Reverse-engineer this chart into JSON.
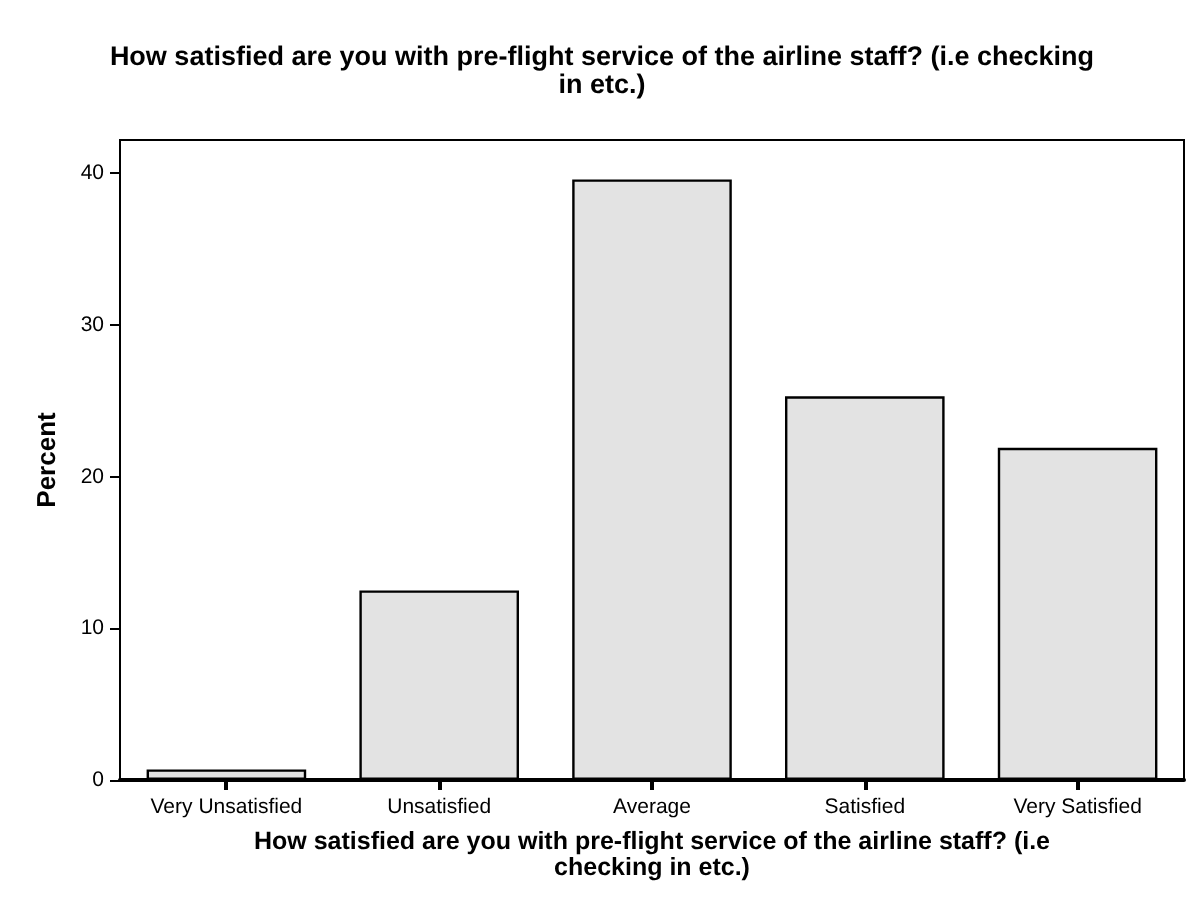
{
  "chart_data": {
    "type": "bar",
    "title": "How satisfied are you with pre-flight service of the airline staff? (i.e checking\nin etc.)",
    "xlabel": "How satisfied are you with pre-flight service of the airline staff? (i.e\nchecking in etc.)",
    "ylabel": "Percent",
    "categories": [
      "Very Unsatisfied",
      "Unsatisfied",
      "Average",
      "Satisfied",
      "Very Satisfied"
    ],
    "values": [
      0.7,
      12.5,
      39.6,
      25.3,
      21.9
    ],
    "color": "#e3e3e3",
    "ylim": [
      0,
      42.2
    ],
    "yticks": [
      0,
      10,
      20,
      30,
      40
    ],
    "grid": false
  }
}
